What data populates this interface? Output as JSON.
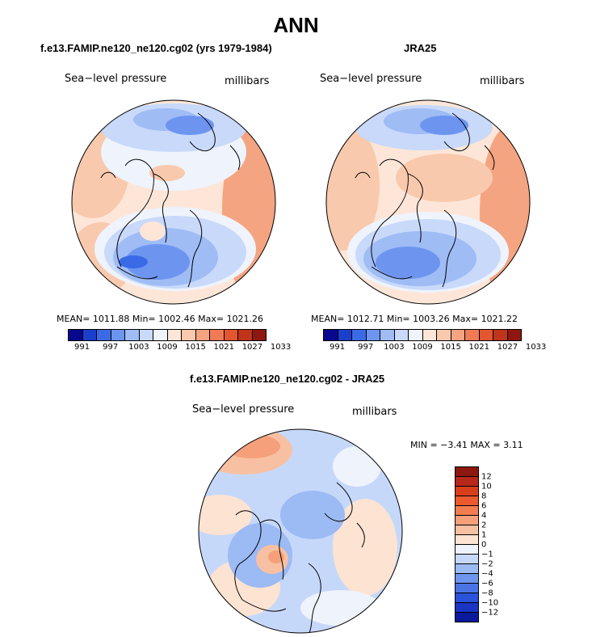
{
  "title": "ANN",
  "variable": "Sea−level pressure",
  "units": "millibars",
  "panels": [
    {
      "title": "f.e13.FAMIP.ne120_ne120.cg02 (yrs 1979-1984)",
      "stats": "MEAN= 1011.88   Min= 1002.46   Max= 1021.26"
    },
    {
      "title": "JRA25",
      "stats": "MEAN= 1012.71   Min= 1003.26   Max= 1021.22"
    },
    {
      "title": "f.e13.FAMIP.ne120_ne120.cg02 - JRA25",
      "stats": "MIN =   −3.41  MAX =    3.11"
    }
  ],
  "abs_colorbar": {
    "colors": [
      "#08088e",
      "#1a3fcc",
      "#3a6ae6",
      "#6d95f0",
      "#9fbcf5",
      "#c8d9fa",
      "#eef3fc",
      "#fde6d8",
      "#f9c9ae",
      "#f5a481",
      "#ef7a56",
      "#e25630",
      "#c0341a",
      "#8e1810"
    ],
    "labels": [
      "991",
      "997",
      "1003",
      "1009",
      "1015",
      "1021",
      "1027",
      "1033"
    ]
  },
  "diff_colorbar": {
    "colors": [
      "#8e1810",
      "#b8281a",
      "#d83e1c",
      "#ea5a2e",
      "#f27d50",
      "#f5a07a",
      "#f8c0a2",
      "#fce3d2",
      "#eef3fc",
      "#c6d8fa",
      "#9cbaf4",
      "#6e96ee",
      "#4a74e6",
      "#2a52da",
      "#1a34c4",
      "#0a1a9c"
    ],
    "labels": [
      "12",
      "10",
      "8",
      "6",
      "4",
      "2",
      "1",
      "0",
      "−1",
      "−2",
      "−4",
      "−6",
      "−8",
      "−10",
      "−12"
    ]
  }
}
